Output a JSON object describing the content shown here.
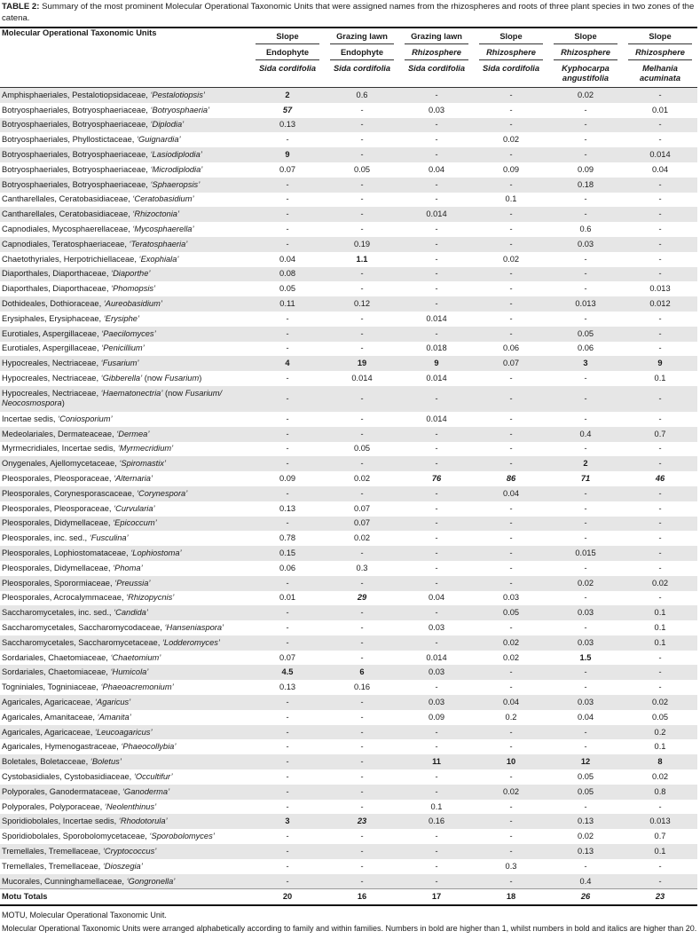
{
  "caption": {
    "label": "TABLE 2:",
    "text": " Summary of the most prominent Molecular Operational Taxonomic Units that were assigned names from the rhizospheres and roots of three plant species in two zones of the catena."
  },
  "header": {
    "first": "Molecular Operational Taxonomic Units",
    "columns": [
      {
        "zone": "Slope",
        "type": "Endophyte",
        "species": "Sida cordifolia"
      },
      {
        "zone": "Grazing lawn",
        "type": "Endophyte",
        "species": "Sida cordifolia"
      },
      {
        "zone": "Grazing lawn",
        "type": "Rhizosphere",
        "species": "Sida cordifolia"
      },
      {
        "zone": "Slope",
        "type": "Rhizosphere",
        "species": "Sida cordifolia"
      },
      {
        "zone": "Slope",
        "type": "Rhizosphere",
        "species": "Kyphocarpa angustifolia"
      },
      {
        "zone": "Slope",
        "type": "Rhizosphere",
        "species": "Melhania acuminata"
      }
    ]
  },
  "rows": [
    {
      "name": [
        [
          "Amphisphaeriales, Pestalotiopsidaceae, ",
          0
        ],
        [
          "‘Pestalotiopsis’",
          1
        ]
      ],
      "values": [
        "2",
        "0.6",
        "-",
        "-",
        "0.02",
        "-"
      ]
    },
    {
      "name": [
        [
          "Botryosphaeriales, Botryosphaeriaceae, ",
          0
        ],
        [
          "‘Botryosphaeria’",
          1
        ]
      ],
      "values": [
        "57",
        "-",
        "0.03",
        "-",
        "-",
        "0.01"
      ]
    },
    {
      "name": [
        [
          "Botryosphaeriales, Botryosphaeriaceae, ",
          0
        ],
        [
          "‘Diplodia’",
          1
        ]
      ],
      "values": [
        "0.13",
        "-",
        "-",
        "-",
        "-",
        "-"
      ]
    },
    {
      "name": [
        [
          "Botryosphaeriales, Phyllostictaceae, ",
          0
        ],
        [
          "‘Guignardia’",
          1
        ]
      ],
      "values": [
        "-",
        "-",
        "-",
        "0.02",
        "-",
        "-"
      ]
    },
    {
      "name": [
        [
          "Botryosphaeriales, Botryosphaeriaceae, ",
          0
        ],
        [
          "‘Lasiodiplodia’",
          1
        ]
      ],
      "values": [
        "9",
        "-",
        "-",
        "-",
        "-",
        "0.014"
      ]
    },
    {
      "name": [
        [
          "Botryosphaeriales, Botryosphaeriaceae, ",
          0
        ],
        [
          "‘Microdiplodia’",
          1
        ]
      ],
      "values": [
        "0.07",
        "0.05",
        "0.04",
        "0.09",
        "0.09",
        "0.04"
      ]
    },
    {
      "name": [
        [
          "Botryosphaeriales, Botryosphaeriaceae, ",
          0
        ],
        [
          "‘Sphaeropsis’",
          1
        ]
      ],
      "values": [
        "-",
        "-",
        "-",
        "-",
        "0.18",
        "-"
      ]
    },
    {
      "name": [
        [
          "Cantharellales, Ceratobasidiaceae, ",
          0
        ],
        [
          "‘Ceratobasidium’",
          1
        ]
      ],
      "values": [
        "-",
        "-",
        "-",
        "0.1",
        "-",
        "-"
      ]
    },
    {
      "name": [
        [
          "Cantharellales, Ceratobasidiaceae, ",
          0
        ],
        [
          "‘Rhizoctonia’",
          1
        ]
      ],
      "values": [
        "-",
        "-",
        "0.014",
        "-",
        "-",
        "-"
      ]
    },
    {
      "name": [
        [
          "Capnodiales, Mycosphaerellaceae, ",
          0
        ],
        [
          "‘Mycosphaerella’",
          1
        ]
      ],
      "values": [
        "-",
        "-",
        "-",
        "-",
        "0.6",
        "-"
      ]
    },
    {
      "name": [
        [
          "Capnodiales, Teratosphaeriaceae, ",
          0
        ],
        [
          "‘Teratosphaeria’",
          1
        ]
      ],
      "values": [
        "-",
        "0.19",
        "-",
        "-",
        "0.03",
        "-"
      ]
    },
    {
      "name": [
        [
          "Chaetothyriales, Herpotrichiellaceae, ",
          0
        ],
        [
          "‘Exophiala’",
          1
        ]
      ],
      "values": [
        "0.04",
        "1.1",
        "-",
        "0.02",
        "-",
        "-"
      ]
    },
    {
      "name": [
        [
          "Diaporthales, Diaporthaceae, ",
          0
        ],
        [
          "‘Diaporthe’",
          1
        ]
      ],
      "values": [
        "0.08",
        "-",
        "-",
        "-",
        "-",
        "-"
      ]
    },
    {
      "name": [
        [
          "Diaporthales, Diaporthaceae, ",
          0
        ],
        [
          "‘Phomopsis’",
          1
        ]
      ],
      "values": [
        "0.05",
        "-",
        "-",
        "-",
        "-",
        "0.013"
      ]
    },
    {
      "name": [
        [
          "Dothideales, Dothioraceae, ",
          0
        ],
        [
          "‘Aureobasidium’",
          1
        ]
      ],
      "values": [
        "0.11",
        "0.12",
        "-",
        "-",
        "0.013",
        "0.012"
      ]
    },
    {
      "name": [
        [
          "Erysiphales, Erysiphaceae, ",
          0
        ],
        [
          "‘Erysiphe’",
          1
        ]
      ],
      "values": [
        "-",
        "-",
        "0.014",
        "-",
        "-",
        "-"
      ]
    },
    {
      "name": [
        [
          "Eurotiales, Aspergillaceae, ",
          0
        ],
        [
          "‘Paecilomyces’",
          1
        ]
      ],
      "values": [
        "-",
        "-",
        "-",
        "-",
        "0.05",
        "-"
      ]
    },
    {
      "name": [
        [
          "Eurotiales, Aspergillaceae, ",
          0
        ],
        [
          "‘Penicillium’",
          1
        ]
      ],
      "values": [
        "-",
        "-",
        "0.018",
        "0.06",
        "0.06",
        "-"
      ]
    },
    {
      "name": [
        [
          "Hypocreales, Nectriaceae, ",
          0
        ],
        [
          "‘Fusarium’",
          1
        ]
      ],
      "values": [
        "4",
        "19",
        "9",
        "0.07",
        "3",
        "9"
      ]
    },
    {
      "name": [
        [
          "Hypocreales, Nectriaceae, ",
          0
        ],
        [
          "‘Gibberella’",
          1
        ],
        [
          " (now ",
          0
        ],
        [
          "Fusarium",
          1
        ],
        [
          ")",
          0
        ]
      ],
      "values": [
        "-",
        "0.014",
        "0.014",
        "-",
        "-",
        "0.1"
      ]
    },
    {
      "name": [
        [
          "Hypocreales, Nectriaceae, ",
          0
        ],
        [
          "‘Haematonectria’",
          1
        ],
        [
          " (now ",
          0
        ],
        [
          "Fusarium/ Neocosmospora",
          1
        ],
        [
          ")",
          0
        ]
      ],
      "values": [
        "-",
        "-",
        "-",
        "-",
        "-",
        "-"
      ],
      "wrap": true
    },
    {
      "name": [
        [
          "Incertae sedis, ",
          0
        ],
        [
          "‘Coniosporium’",
          1
        ]
      ],
      "values": [
        "-",
        "-",
        "0.014",
        "-",
        "-",
        "-"
      ]
    },
    {
      "name": [
        [
          "Medeolariales, Dermateaceae, ",
          0
        ],
        [
          "‘Dermea’",
          1
        ]
      ],
      "values": [
        "-",
        "-",
        "-",
        "-",
        "0.4",
        "0.7"
      ]
    },
    {
      "name": [
        [
          "Myrmecridiales, Incertae sedis, ",
          0
        ],
        [
          "‘Myrmecridium’",
          1
        ]
      ],
      "values": [
        "-",
        "0.05",
        "-",
        "-",
        "-",
        "-"
      ]
    },
    {
      "name": [
        [
          "Onygenales, Ajellomycetaceae, ",
          0
        ],
        [
          "‘Spiromastix’",
          1
        ]
      ],
      "values": [
        "-",
        "-",
        "-",
        "-",
        "2",
        "-"
      ]
    },
    {
      "name": [
        [
          "Pleosporales, Pleosporaceae, ",
          0
        ],
        [
          "‘Alternaria’",
          1
        ]
      ],
      "values": [
        "0.09",
        "0.02",
        "76",
        "86",
        "71",
        "46"
      ]
    },
    {
      "name": [
        [
          "Pleosporales, Corynesporascaceae, ",
          0
        ],
        [
          "‘Corynespora’",
          1
        ]
      ],
      "values": [
        "-",
        "-",
        "-",
        "0.04",
        "-",
        "-"
      ]
    },
    {
      "name": [
        [
          "Pleosporales, Pleosporaceae, ",
          0
        ],
        [
          "‘Curvularia’",
          1
        ]
      ],
      "values": [
        "0.13",
        "0.07",
        "-",
        "-",
        "-",
        "-"
      ]
    },
    {
      "name": [
        [
          "Pleosporales, Didymellaceae, ",
          0
        ],
        [
          "‘Epicoccum’",
          1
        ]
      ],
      "values": [
        "-",
        "0.07",
        "-",
        "-",
        "-",
        "-"
      ]
    },
    {
      "name": [
        [
          "Pleosporales, inc. sed., ",
          0
        ],
        [
          "‘Fusculina’",
          1
        ]
      ],
      "values": [
        "0.78",
        "0.02",
        "-",
        "-",
        "-",
        "-"
      ]
    },
    {
      "name": [
        [
          "Pleosporales, Lophiostomataceae, ",
          0
        ],
        [
          "‘Lophiostoma’",
          1
        ]
      ],
      "values": [
        "0.15",
        "-",
        "-",
        "-",
        "0.015",
        "-"
      ]
    },
    {
      "name": [
        [
          "Pleosporales, Didymellaceae, ",
          0
        ],
        [
          "‘Phoma’",
          1
        ]
      ],
      "values": [
        "0.06",
        "0.3",
        "-",
        "-",
        "-",
        "-"
      ]
    },
    {
      "name": [
        [
          "Pleosporales, Sporormiaceae, ",
          0
        ],
        [
          "‘Preussia’",
          1
        ]
      ],
      "values": [
        "-",
        "-",
        "-",
        "-",
        "0.02",
        "0.02"
      ]
    },
    {
      "name": [
        [
          "Pleosporales, Acrocalymmaceae, ",
          0
        ],
        [
          "‘Rhizopycnis’",
          1
        ]
      ],
      "values": [
        "0.01",
        "29",
        "0.04",
        "0.03",
        "-",
        "-"
      ]
    },
    {
      "name": [
        [
          "Saccharomycetales, inc. sed., ",
          0
        ],
        [
          "‘Candida’",
          1
        ]
      ],
      "values": [
        "-",
        "-",
        "-",
        "0.05",
        "0.03",
        "0.1"
      ]
    },
    {
      "name": [
        [
          "Saccharomycetales, Saccharomycodaceae, ",
          0
        ],
        [
          "‘Hanseniaspora’",
          1
        ]
      ],
      "values": [
        "-",
        "-",
        "0.03",
        "-",
        "-",
        "0.1"
      ]
    },
    {
      "name": [
        [
          "Saccharomycetales, Saccharomycetaceae, ",
          0
        ],
        [
          "‘Lodderomyces’",
          1
        ]
      ],
      "values": [
        "-",
        "-",
        "-",
        "0.02",
        "0.03",
        "0.1"
      ]
    },
    {
      "name": [
        [
          "Sordariales, Chaetomiaceae, ",
          0
        ],
        [
          "‘Chaetomium’",
          1
        ]
      ],
      "values": [
        "0.07",
        "-",
        "0.014",
        "0.02",
        "1.5",
        "-"
      ]
    },
    {
      "name": [
        [
          "Sordariales, Chaetomiaceae, ",
          0
        ],
        [
          "‘Humicola’",
          1
        ]
      ],
      "values": [
        "4.5",
        "6",
        "0.03",
        "-",
        "-",
        "-"
      ]
    },
    {
      "name": [
        [
          "Togniniales, Togniniaceae, ",
          0
        ],
        [
          "‘Phaeoacremonium’",
          1
        ]
      ],
      "values": [
        "0.13",
        "0.16",
        "-",
        "-",
        "-",
        "-"
      ]
    },
    {
      "name": [
        [
          "Agaricales, Agaricaceae, ",
          0
        ],
        [
          "‘Agaricus’",
          1
        ]
      ],
      "values": [
        "-",
        "-",
        "0.03",
        "0.04",
        "0.03",
        "0.02"
      ]
    },
    {
      "name": [
        [
          "Agaricales, Amanitaceae, ",
          0
        ],
        [
          "‘Amanita’",
          1
        ]
      ],
      "values": [
        "-",
        "-",
        "0.09",
        "0.2",
        "0.04",
        "0.05"
      ]
    },
    {
      "name": [
        [
          "Agaricales, Agaricaceae, ",
          0
        ],
        [
          "‘Leucoagaricus’",
          1
        ]
      ],
      "values": [
        "-",
        "-",
        "-",
        "-",
        "-",
        "0.2"
      ]
    },
    {
      "name": [
        [
          "Agaricales, Hymenogastraceae, ",
          0
        ],
        [
          "‘Phaeocollybia’",
          1
        ]
      ],
      "values": [
        "-",
        "-",
        "-",
        "-",
        "-",
        "0.1"
      ]
    },
    {
      "name": [
        [
          "Boletales, Boletacceae, ",
          0
        ],
        [
          "‘Boletus’",
          1
        ]
      ],
      "values": [
        "-",
        "-",
        "11",
        "10",
        "12",
        "8"
      ]
    },
    {
      "name": [
        [
          "Cystobasidiales, Cystobasidiaceae, ",
          0
        ],
        [
          "‘Occultifur’",
          1
        ]
      ],
      "values": [
        "-",
        "-",
        "-",
        "-",
        "0.05",
        "0.02"
      ]
    },
    {
      "name": [
        [
          "Polyporales, Ganodermataceae, ",
          0
        ],
        [
          "‘Ganoderma’",
          1
        ]
      ],
      "values": [
        "-",
        "-",
        "-",
        "0.02",
        "0.05",
        "0.8"
      ]
    },
    {
      "name": [
        [
          "Polyporales, Polyporaceae, ",
          0
        ],
        [
          "‘Neolenthinus’",
          1
        ]
      ],
      "values": [
        "-",
        "-",
        "0.1",
        "-",
        "-",
        "-"
      ]
    },
    {
      "name": [
        [
          "Sporidiobolales, Incertae sedis, ",
          0
        ],
        [
          "‘Rhodotorula’",
          1
        ]
      ],
      "values": [
        "3",
        "23",
        "0.16",
        "-",
        "0.13",
        "0.013"
      ]
    },
    {
      "name": [
        [
          "Sporidiobolales, Sporobolomycetaceae, ",
          0
        ],
        [
          "‘Sporobolomyces’",
          1
        ]
      ],
      "values": [
        "-",
        "-",
        "-",
        "-",
        "0.02",
        "0.7"
      ]
    },
    {
      "name": [
        [
          "Tremellales, Tremellaceae, ",
          0
        ],
        [
          "‘Cryptococcus’",
          1
        ]
      ],
      "values": [
        "-",
        "-",
        "-",
        "-",
        "0.13",
        "0.1"
      ]
    },
    {
      "name": [
        [
          "Tremellales, Tremellaceae, ",
          0
        ],
        [
          "‘Dioszegia’",
          1
        ]
      ],
      "values": [
        "-",
        "-",
        "-",
        "0.3",
        "-",
        "-"
      ]
    },
    {
      "name": [
        [
          "Mucorales, Cunninghamellaceae, ",
          0
        ],
        [
          "‘Gongronella’",
          1
        ]
      ],
      "values": [
        "-",
        "-",
        "-",
        "-",
        "0.4",
        "-"
      ]
    }
  ],
  "totals": {
    "label": "Motu Totals",
    "values": [
      "20",
      "16",
      "17",
      "18",
      "26",
      "23"
    ]
  },
  "footnotes": [
    "MOTU, Molecular Operational Taxonomic Unit.",
    "Molecular Operational Taxonomic Units were arranged alphabetically according to family and within families. Numbers in bold are higher than 1, whilst numbers in bold and italics are higher than 20."
  ]
}
